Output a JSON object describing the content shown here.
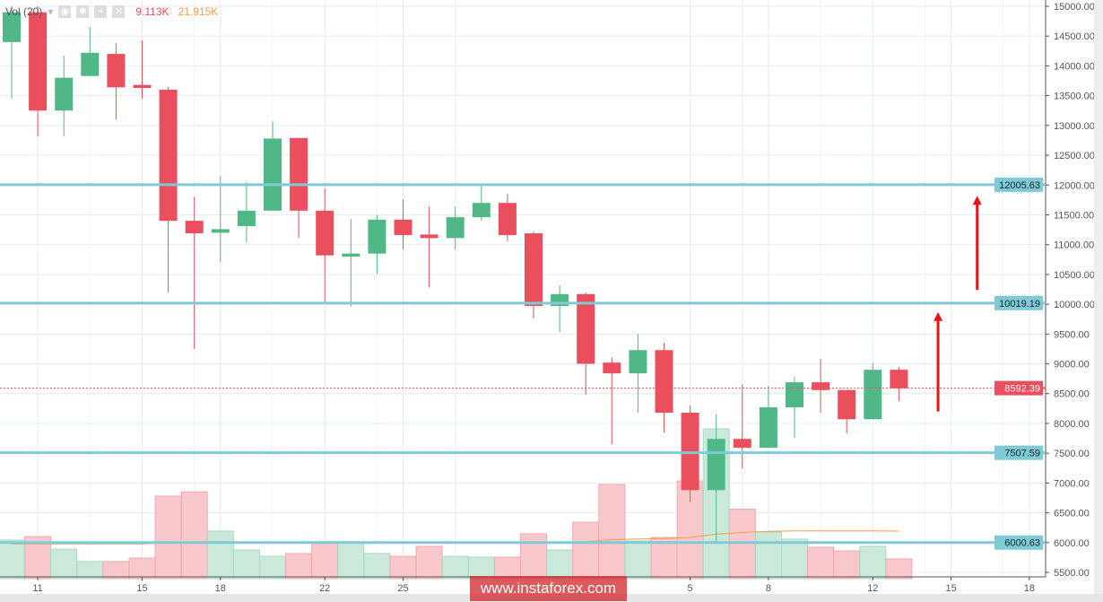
{
  "legend": {
    "indicator": "Vol (20)",
    "volume": "9.113K",
    "volume_ma": "21.915K",
    "volume_color": "#e8505b",
    "ma_color": "#f39c4a"
  },
  "watermark": "www.instaforex.com",
  "colors": {
    "up": "#4fb886",
    "down": "#e94f5c",
    "level": "#7ecbd7",
    "arrow": "#e8141a",
    "price_line": "#e94f5c"
  },
  "chart_data": {
    "type": "candlestick",
    "ylim": [
      5400,
      15100
    ],
    "y_ticks": [
      "15000.00",
      "14500.00",
      "14000.00",
      "13500.00",
      "13000.00",
      "12500.00",
      "12000.00",
      "11500.00",
      "11000.00",
      "10500.00",
      "10000.00",
      "9500.00",
      "9000.00",
      "8500.00",
      "8000.00",
      "7500.00",
      "7000.00",
      "6500.00",
      "6000.00",
      "5500.00"
    ],
    "x_ticks": [
      {
        "label": "11",
        "index": 1
      },
      {
        "label": "15",
        "index": 5
      },
      {
        "label": "18",
        "index": 8
      },
      {
        "label": "22",
        "index": 12
      },
      {
        "label": "25",
        "index": 15
      },
      {
        "label": "5",
        "index": 26
      },
      {
        "label": "8",
        "index": 29
      },
      {
        "label": "12",
        "index": 33
      },
      {
        "label": "15",
        "index": 36
      },
      {
        "label": "18",
        "index": 39
      }
    ],
    "columns": [
      "open",
      "high",
      "low",
      "close",
      "volume_k",
      "volume_ma_k"
    ],
    "candles": [
      [
        14400,
        15000,
        13450,
        14900,
        17.8,
        16
      ],
      [
        14900,
        15000,
        12815,
        13250,
        19.4,
        16
      ],
      [
        13250,
        14170,
        12820,
        13800,
        13.6,
        16
      ],
      [
        13830,
        14650,
        13830,
        14220,
        7.9,
        16
      ],
      [
        14200,
        14380,
        13100,
        13640,
        7.9,
        16
      ],
      [
        13680,
        14430,
        13450,
        13630,
        9.5,
        16
      ],
      [
        13600,
        13650,
        10200,
        11400,
        38,
        16.5
      ],
      [
        11400,
        11800,
        9250,
        11190,
        40,
        17
      ],
      [
        11200,
        12150,
        10700,
        11260,
        21.9,
        17
      ],
      [
        11310,
        12050,
        11040,
        11570,
        13.2,
        17
      ],
      [
        11570,
        13070,
        11570,
        12780,
        10.3,
        17
      ],
      [
        12790,
        12790,
        11110,
        11570,
        11.6,
        17
      ],
      [
        11570,
        11940,
        10030,
        10820,
        16.9,
        17
      ],
      [
        10800,
        11430,
        9960,
        10850,
        16.9,
        17
      ],
      [
        10850,
        11500,
        10510,
        11420,
        11.6,
        17
      ],
      [
        11420,
        11760,
        10920,
        11160,
        10.3,
        16.8
      ],
      [
        11170,
        11640,
        10280,
        11110,
        14.9,
        16.8
      ],
      [
        11110,
        11640,
        10920,
        11460,
        10.3,
        16.8
      ],
      [
        11460,
        12000,
        11400,
        11700,
        9.9,
        16.8
      ],
      [
        11700,
        11850,
        11060,
        11160,
        9.9,
        16.8
      ],
      [
        11190,
        11220,
        9760,
        9970,
        20.7,
        16.8
      ],
      [
        9970,
        10320,
        9530,
        10170,
        13.2,
        16.8
      ],
      [
        10170,
        10200,
        8480,
        9000,
        26,
        17
      ],
      [
        9020,
        9110,
        7650,
        8840,
        43.4,
        18
      ],
      [
        8840,
        9500,
        8180,
        9230,
        17.4,
        18.3
      ],
      [
        9230,
        9350,
        7850,
        8180,
        19,
        18.5
      ],
      [
        8180,
        8300,
        6680,
        6880,
        45,
        19
      ],
      [
        6880,
        8150,
        5980,
        7740,
        69,
        20.5
      ],
      [
        7740,
        8660,
        7240,
        7590,
        32,
        21.3
      ],
      [
        7590,
        8630,
        7590,
        8270,
        21.5,
        21.8
      ],
      [
        8270,
        8780,
        7760,
        8690,
        18.2,
        22
      ],
      [
        8690,
        9080,
        8180,
        8560,
        14.5,
        22
      ],
      [
        8560,
        8560,
        7830,
        8070,
        12.8,
        22
      ],
      [
        8070,
        9010,
        8070,
        8900,
        14.9,
        22
      ],
      [
        8900,
        8950,
        8370,
        8590,
        9.1,
        21.9
      ]
    ],
    "levels": [
      "12005.63",
      "10019.19",
      "7507.59",
      "6000.63"
    ],
    "current_price": "8592.39",
    "arrows": [
      {
        "index": 35.5,
        "from": 8200,
        "to": 9870
      },
      {
        "index": 37,
        "from": 10240,
        "to": 11820
      }
    ]
  }
}
